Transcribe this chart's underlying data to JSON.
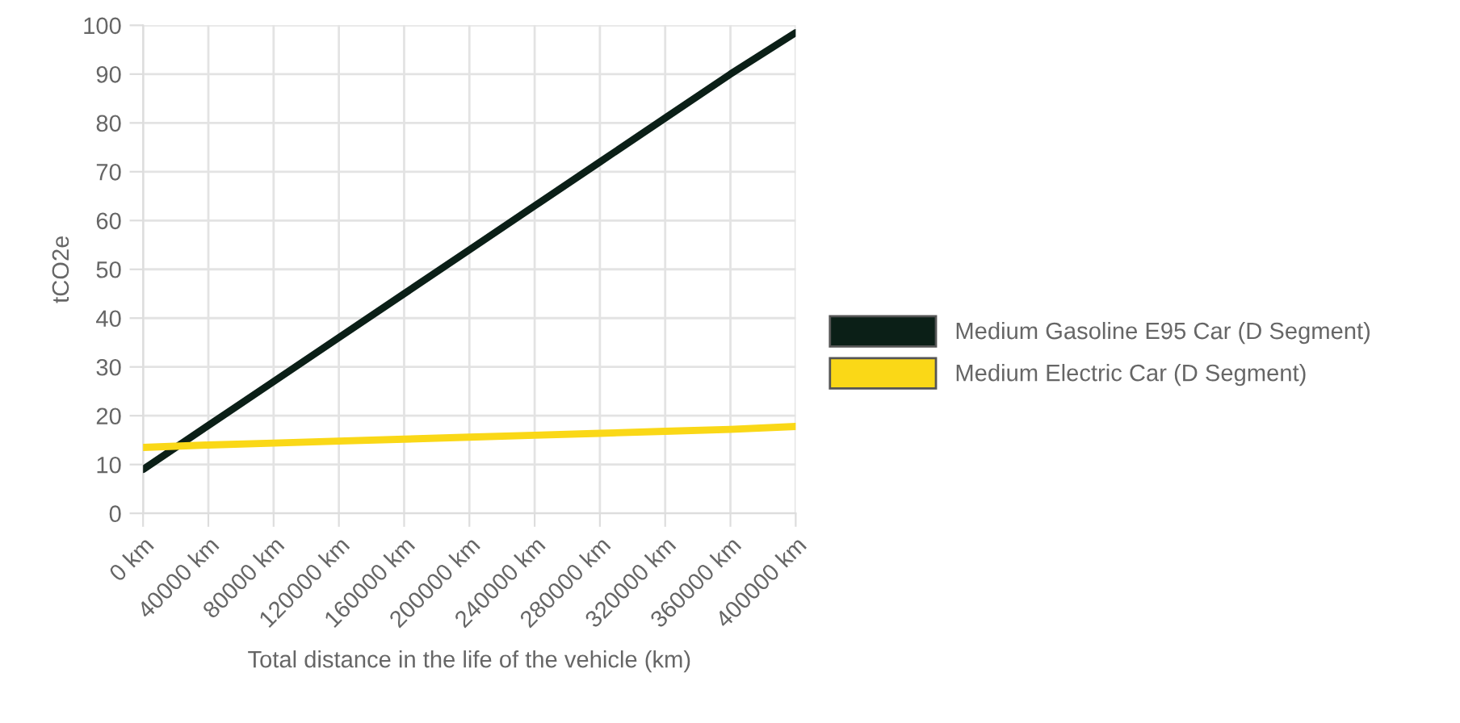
{
  "chart_data": {
    "type": "line",
    "categories": [
      "0 km",
      "40000 km",
      "80000 km",
      "120000 km",
      "160000 km",
      "200000 km",
      "240000 km",
      "280000 km",
      "320000 km",
      "360000 km",
      "400000 km"
    ],
    "series": [
      {
        "name": "Medium Gasoline E95 Car (D Segment)",
        "color": "#0b1f17",
        "values": [
          9,
          18,
          27,
          36,
          45,
          54,
          63,
          72,
          81,
          90,
          98.5
        ]
      },
      {
        "name": "Medium Electric Car (D Segment)",
        "color": "#fad817",
        "values": [
          13.5,
          14,
          14.4,
          14.8,
          15.2,
          15.6,
          16,
          16.4,
          16.8,
          17.2,
          17.8
        ]
      }
    ],
    "xlabel": "Total distance in the life of the vehicle (km)",
    "ylabel": "tCO2e",
    "ylim": [
      0,
      100
    ],
    "yticks": [
      0,
      10,
      20,
      30,
      40,
      50,
      60,
      70,
      80,
      90,
      100
    ],
    "grid": true,
    "legend": "right",
    "marker": "none",
    "line_style": "solid"
  }
}
